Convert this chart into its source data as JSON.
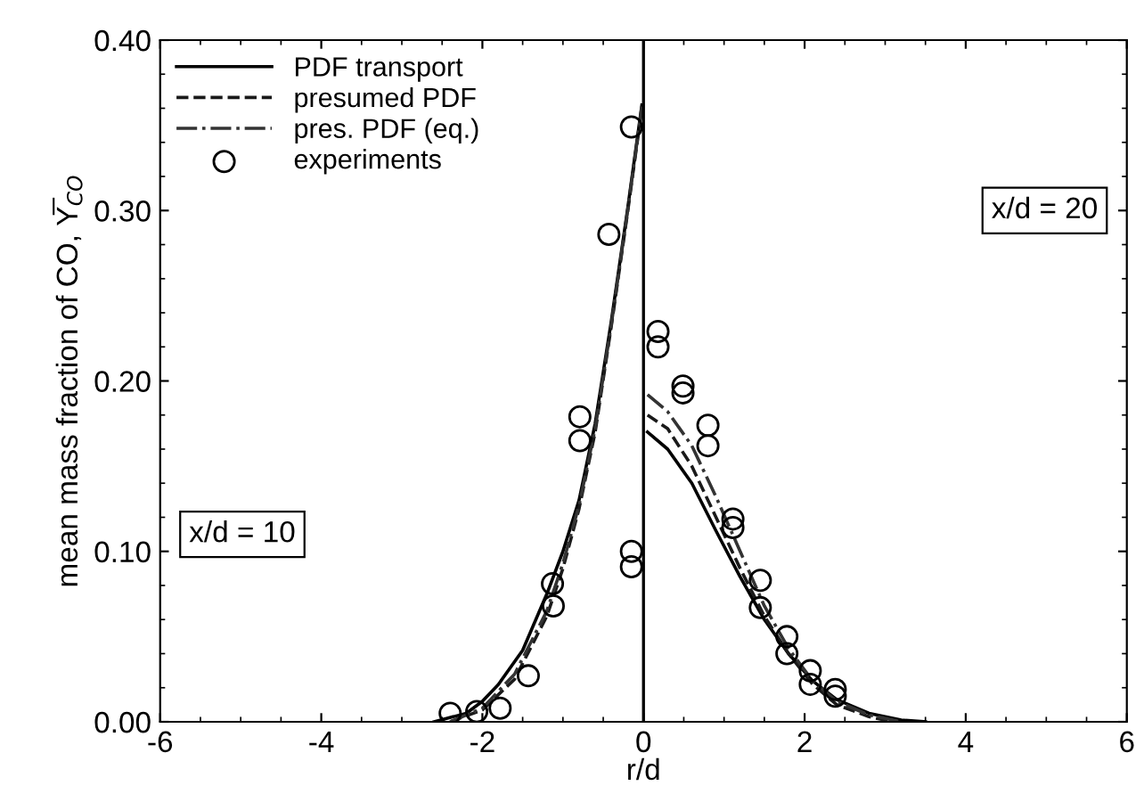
{
  "chart_data": {
    "type": "line",
    "xlabel": "r/d",
    "ylabel": "mean mass fraction of CO, Y̅$_{CO}$",
    "xlim": [
      -6,
      6
    ],
    "ylim": [
      0,
      0.4
    ],
    "xticks": [
      -6,
      -4,
      -2,
      0,
      2,
      4,
      6
    ],
    "yticks": [
      {
        "value": 0,
        "label": "0.00"
      },
      {
        "value": 0.1,
        "label": "0.10"
      },
      {
        "value": 0.2,
        "label": "0.20"
      },
      {
        "value": 0.3,
        "label": "0.30"
      },
      {
        "value": 0.4,
        "label": "0.40"
      }
    ],
    "grid": false,
    "legend": "top left",
    "ref_lines": [
      {
        "axis": "x",
        "value": 0,
        "color": "#000000",
        "line_style": "solid"
      }
    ],
    "annotations": [
      "x/d = 10",
      "x/d = 20"
    ],
    "series": [
      {
        "name": "PDF transport",
        "line_style": "solid",
        "color": "#000000",
        "x": [
          -2.6,
          -2.2,
          -2.0,
          -1.8,
          -1.5,
          -1.2,
          -1.0,
          -0.8,
          -0.6,
          -0.4,
          -0.2,
          -0.02,
          0.02,
          0.05,
          0.3,
          0.6,
          0.9,
          1.2,
          1.5,
          1.8,
          2.1,
          2.4,
          2.8,
          3.2,
          3.5
        ],
        "values": [
          0,
          0.005,
          0.012,
          0.022,
          0.042,
          0.075,
          0.1,
          0.13,
          0.175,
          0.235,
          0.3,
          0.362,
          null,
          0.17,
          0.16,
          0.14,
          0.112,
          0.085,
          0.06,
          0.04,
          0.024,
          0.013,
          0.005,
          0.001,
          0
        ]
      },
      {
        "name": "presumed PDF",
        "line_style": "dashed",
        "color": "#1a1a1a",
        "x": [
          -2.4,
          -2.0,
          -1.6,
          -1.2,
          -1.0,
          -0.8,
          -0.6,
          -0.4,
          -0.2,
          -0.02,
          0.02,
          0.05,
          0.3,
          0.6,
          0.9,
          1.2,
          1.5,
          1.8,
          2.1,
          2.4,
          2.8,
          3.1
        ],
        "values": [
          0,
          0.007,
          0.025,
          0.062,
          0.09,
          0.125,
          0.17,
          0.232,
          0.298,
          0.36,
          null,
          0.18,
          0.172,
          0.15,
          0.12,
          0.09,
          0.062,
          0.04,
          0.022,
          0.01,
          0.003,
          0
        ]
      },
      {
        "name": "pres. PDF (eq.)",
        "line_style": "dashdot",
        "color": "#333333",
        "x": [
          -2.4,
          -2.0,
          -1.6,
          -1.2,
          -1.0,
          -0.8,
          -0.6,
          -0.4,
          -0.2,
          -0.02,
          0.02,
          0.05,
          0.3,
          0.6,
          0.9,
          1.2,
          1.5,
          1.8,
          2.1,
          2.4,
          2.8,
          3.2
        ],
        "values": [
          0,
          0.008,
          0.028,
          0.065,
          0.093,
          0.127,
          0.172,
          0.233,
          0.299,
          0.361,
          null,
          0.192,
          0.182,
          0.162,
          0.132,
          0.1,
          0.068,
          0.043,
          0.024,
          0.012,
          0.004,
          0
        ]
      },
      {
        "name": "experiments",
        "type": "scatter",
        "marker": "circle",
        "color": "#000000",
        "x": [
          -0.15,
          -0.43,
          -0.79,
          -0.79,
          -0.15,
          -0.15,
          -1.13,
          -1.12,
          -1.43,
          -1.78,
          -2.07,
          -2.4,
          0.18,
          0.18,
          0.49,
          0.49,
          0.8,
          0.8,
          1.11,
          1.11,
          1.45,
          1.45,
          1.78,
          1.78,
          2.07,
          2.07,
          2.38,
          2.38
        ],
        "values": [
          0.349,
          0.286,
          0.179,
          0.165,
          0.1,
          0.091,
          0.081,
          0.068,
          0.027,
          0.008,
          0.006,
          0.005,
          0.229,
          0.22,
          0.197,
          0.193,
          0.174,
          0.162,
          0.119,
          0.114,
          0.083,
          0.067,
          0.05,
          0.04,
          0.03,
          0.022,
          0.019,
          0.015
        ]
      }
    ]
  }
}
